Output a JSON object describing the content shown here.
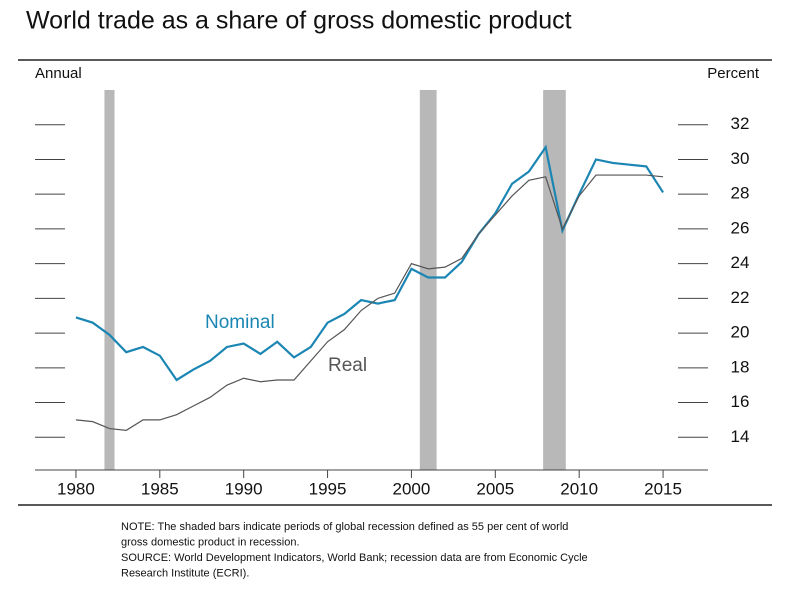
{
  "chart_data": {
    "type": "line",
    "title": "World trade as a share of gross domestic product",
    "frequency_label": "Annual",
    "y_label": "Percent",
    "x": [
      1980,
      1981,
      1982,
      1983,
      1984,
      1985,
      1986,
      1987,
      1988,
      1989,
      1990,
      1991,
      1992,
      1993,
      1994,
      1995,
      1996,
      1997,
      1998,
      1999,
      2000,
      2001,
      2002,
      2003,
      2004,
      2005,
      2006,
      2007,
      2008,
      2009,
      2010,
      2011,
      2012,
      2013,
      2014,
      2015
    ],
    "series": [
      {
        "name": "Nominal",
        "color": "#1b86b3",
        "values": [
          20.9,
          20.6,
          19.9,
          18.9,
          19.2,
          18.7,
          17.3,
          17.9,
          18.4,
          19.2,
          19.4,
          18.8,
          19.5,
          18.6,
          19.2,
          20.6,
          21.1,
          21.9,
          21.7,
          21.9,
          23.7,
          23.2,
          23.2,
          24.1,
          25.7,
          26.9,
          28.6,
          29.3,
          30.7,
          25.9,
          28.0,
          30.0,
          29.8,
          29.7,
          29.6,
          28.1
        ]
      },
      {
        "name": "Real",
        "color": "#555555",
        "values": [
          15.0,
          14.9,
          14.5,
          14.4,
          15.0,
          15.0,
          15.3,
          15.8,
          16.3,
          17.0,
          17.4,
          17.2,
          17.3,
          17.3,
          18.4,
          19.5,
          20.2,
          21.3,
          22.0,
          22.3,
          24.0,
          23.7,
          23.8,
          24.3,
          25.7,
          26.8,
          27.9,
          28.8,
          29.0,
          26.0,
          27.9,
          29.1,
          29.1,
          29.1,
          29.1,
          29.0
        ]
      }
    ],
    "recessions": [
      [
        1981.7,
        1982.3
      ],
      [
        2000.5,
        2001.5
      ],
      [
        2007.85,
        2009.2
      ]
    ],
    "recession_color": "#b8b8b8",
    "xlim": [
      1977.5,
      2017.5
    ],
    "xticks": [
      1980,
      1985,
      1990,
      1995,
      2000,
      2005,
      2010,
      2015
    ],
    "ylim": [
      12,
      34
    ],
    "yticks": [
      14,
      16,
      18,
      20,
      22,
      24,
      26,
      28,
      30,
      32
    ],
    "note": [
      "NOTE:  The shaded bars indicate periods of global recession defined as 55 per cent of world",
      "gross domestic product in recession."
    ],
    "source": [
      "SOURCE:  World Development  Indicators, World Bank; recession data are from Economic Cycle",
      "Research Institute (ECRI)."
    ]
  }
}
